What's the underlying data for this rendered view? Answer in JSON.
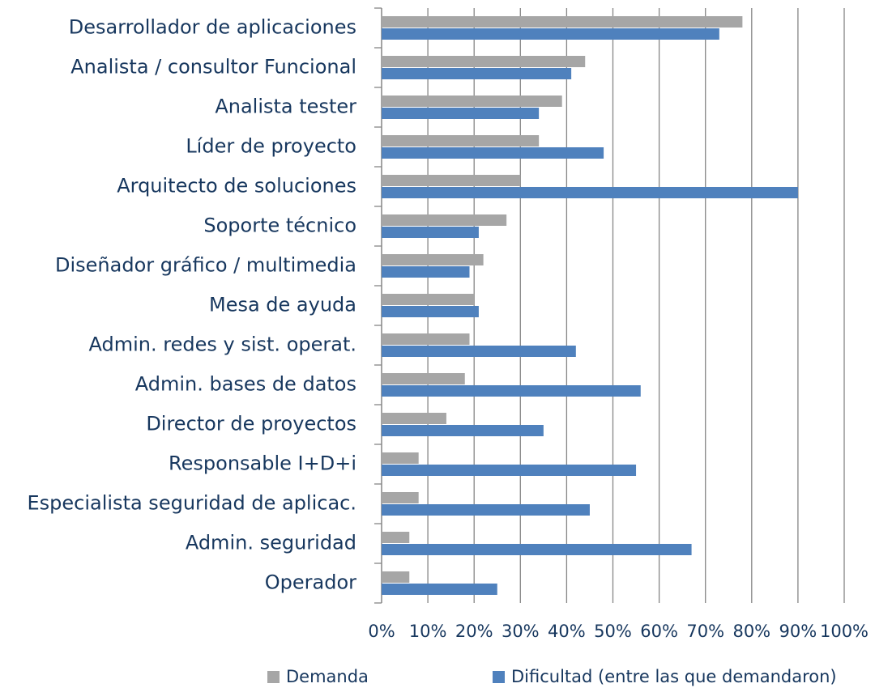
{
  "chart_data": {
    "type": "bar",
    "orientation": "horizontal",
    "categories": [
      "Desarrollador de aplicaciones",
      "Analista / consultor Funcional",
      "Analista tester",
      "Líder de proyecto",
      "Arquitecto de soluciones",
      "Soporte técnico",
      "Diseñador gráfico / multimedia",
      "Mesa de ayuda",
      "Admin. redes y sist. operat.",
      "Admin. bases de datos",
      "Director de proyectos",
      "Responsable I+D+i",
      "Especialista seguridad de aplicac.",
      "Admin. seguridad",
      "Operador"
    ],
    "series": [
      {
        "name": "Demanda",
        "color": "#a6a6a6",
        "values": [
          78,
          44,
          39,
          34,
          30,
          27,
          22,
          20,
          19,
          18,
          14,
          8,
          8,
          6,
          6
        ]
      },
      {
        "name": "Dificultad (entre las que demandaron)",
        "color": "#4f81bd",
        "values": [
          73,
          41,
          34,
          48,
          90,
          21,
          19,
          21,
          42,
          56,
          35,
          55,
          45,
          67,
          25
        ]
      }
    ],
    "xlim": [
      0,
      100
    ],
    "xticks": [
      {
        "value": 0,
        "label": "0%"
      },
      {
        "value": 10,
        "label": "10%"
      },
      {
        "value": 20,
        "label": "20%"
      },
      {
        "value": 30,
        "label": "30%"
      },
      {
        "value": 40,
        "label": "40%"
      },
      {
        "value": 50,
        "label": "50%"
      },
      {
        "value": 60,
        "label": "60%"
      },
      {
        "value": 70,
        "label": "70%"
      },
      {
        "value": 80,
        "label": "80%"
      },
      {
        "value": 90,
        "label": "90%"
      },
      {
        "value": 100,
        "label": "100%"
      }
    ],
    "grid": true,
    "legend": "bottom"
  }
}
